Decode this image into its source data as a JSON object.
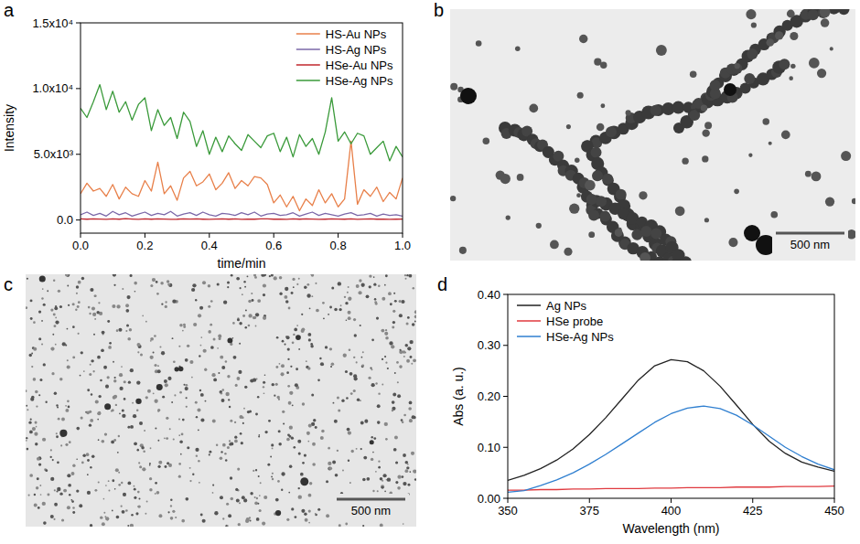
{
  "chart_data": [
    {
      "type": "line",
      "panel": "a",
      "x_label": "time/min",
      "y_label": "Intensity",
      "xlim": [
        0,
        1.0
      ],
      "xticks": [
        {
          "value": 0,
          "label": "0.0"
        },
        {
          "value": 0.2,
          "label": "0.2"
        },
        {
          "value": 0.4,
          "label": "0.4"
        },
        {
          "value": 0.6,
          "label": "0.6"
        },
        {
          "value": 0.8,
          "label": "0.8"
        },
        {
          "value": 1.0,
          "label": "1.0"
        }
      ],
      "ylim": [
        -1000,
        15000
      ],
      "yticks": [
        {
          "value": 0,
          "label": "0.0"
        },
        {
          "value": 5000,
          "label": "5.0x10³"
        },
        {
          "value": 10000,
          "label": "1.0x10⁴"
        },
        {
          "value": 15000,
          "label": "1.5x10⁴"
        }
      ],
      "grid": false,
      "legend": "upper right",
      "x": [
        0,
        0.02,
        0.04,
        0.06,
        0.08,
        0.1,
        0.12,
        0.14,
        0.16,
        0.18,
        0.2,
        0.22,
        0.24,
        0.26,
        0.28,
        0.3,
        0.32,
        0.34,
        0.36,
        0.38,
        0.4,
        0.42,
        0.44,
        0.46,
        0.48,
        0.5,
        0.52,
        0.54,
        0.56,
        0.58,
        0.6,
        0.62,
        0.64,
        0.66,
        0.68,
        0.7,
        0.72,
        0.74,
        0.76,
        0.78,
        0.8,
        0.82,
        0.84,
        0.86,
        0.88,
        0.9,
        0.92,
        0.94,
        0.96,
        0.98,
        1.0
      ],
      "series": [
        {
          "name": "HS-Au NPs",
          "color": "#e8804a",
          "values": [
            2000,
            2800,
            2200,
            2400,
            1800,
            2700,
            1600,
            2500,
            2000,
            1800,
            3000,
            2200,
            4400,
            2000,
            2600,
            1500,
            3200,
            3700,
            2600,
            2900,
            3500,
            2300,
            2800,
            3600,
            2400,
            3000,
            2600,
            3300,
            3200,
            2700,
            1300,
            1900,
            1000,
            1800,
            700,
            1600,
            1100,
            2300,
            1300,
            2000,
            1000,
            1600,
            6000,
            1200,
            2300,
            1800,
            2500,
            1400,
            2100,
            1600,
            3200
          ]
        },
        {
          "name": "HS-Ag NPs",
          "color": "#7b68a8",
          "values": [
            400,
            600,
            350,
            500,
            300,
            650,
            400,
            550,
            300,
            450,
            600,
            350,
            500,
            400,
            650,
            300,
            450,
            550,
            350,
            600,
            400,
            300,
            500,
            450,
            350,
            550,
            400,
            600,
            300,
            450,
            500,
            350,
            400,
            550,
            300,
            450,
            600,
            350,
            500,
            400,
            300,
            450,
            550,
            350,
            400,
            500,
            300,
            450,
            350,
            400,
            300
          ]
        },
        {
          "name": "HSe-Au NPs",
          "color": "#c0272d",
          "values": [
            80,
            60,
            90,
            70,
            50,
            80,
            60,
            100,
            70,
            50,
            90,
            60,
            80,
            70,
            50,
            60,
            90,
            70,
            80,
            60,
            50,
            70,
            90,
            60,
            80,
            50,
            70,
            60,
            90,
            80,
            60,
            70,
            50,
            80,
            60,
            90,
            70,
            50,
            60,
            80,
            70,
            60,
            90,
            50,
            70,
            80,
            60,
            70,
            50,
            60,
            70
          ]
        },
        {
          "name": "HSe-Ag NPs",
          "color": "#3a9a3a",
          "values": [
            8500,
            7800,
            9000,
            10300,
            8400,
            9800,
            8200,
            9000,
            7600,
            8800,
            9300,
            6800,
            8400,
            7200,
            7800,
            6200,
            8200,
            7500,
            5600,
            6800,
            5000,
            6300,
            5200,
            6400,
            5800,
            5300,
            6500,
            6000,
            5500,
            6400,
            6600,
            5200,
            6300,
            4800,
            6500,
            5600,
            6200,
            5000,
            6700,
            9300,
            6000,
            6700,
            5800,
            6600,
            6400,
            5000,
            5500,
            6000,
            4500,
            5600,
            4800
          ]
        }
      ]
    },
    {
      "type": "line",
      "panel": "d",
      "x_label": "Wavelength (nm)",
      "y_label": "Abs (a. u.)",
      "xlim": [
        350,
        450
      ],
      "xticks": [
        350,
        375,
        400,
        425,
        450
      ],
      "ylim": [
        0,
        0.4
      ],
      "yticks": [
        {
          "value": 0,
          "label": "0.00"
        },
        {
          "value": 0.1,
          "label": "0.10"
        },
        {
          "value": 0.2,
          "label": "0.20"
        },
        {
          "value": 0.3,
          "label": "0.30"
        },
        {
          "value": 0.4,
          "label": "0.40"
        }
      ],
      "grid": false,
      "legend": "upper left",
      "x": [
        350,
        355,
        360,
        365,
        370,
        375,
        380,
        385,
        390,
        395,
        400,
        405,
        410,
        415,
        420,
        425,
        430,
        435,
        440,
        445,
        450
      ],
      "series": [
        {
          "name": "Ag NPs",
          "color": "#222222",
          "values": [
            0.035,
            0.045,
            0.058,
            0.075,
            0.097,
            0.125,
            0.158,
            0.195,
            0.232,
            0.26,
            0.272,
            0.268,
            0.25,
            0.22,
            0.183,
            0.145,
            0.112,
            0.088,
            0.071,
            0.061,
            0.053
          ]
        },
        {
          "name": "HSe probe",
          "color": "#e0393e",
          "values": [
            0.016,
            0.016,
            0.017,
            0.017,
            0.018,
            0.018,
            0.019,
            0.019,
            0.019,
            0.02,
            0.02,
            0.021,
            0.021,
            0.021,
            0.022,
            0.022,
            0.022,
            0.023,
            0.023,
            0.023,
            0.024
          ]
        },
        {
          "name": "HSe-Ag NPs",
          "color": "#2f7fd0",
          "values": [
            0.012,
            0.015,
            0.025,
            0.036,
            0.05,
            0.067,
            0.086,
            0.107,
            0.128,
            0.149,
            0.166,
            0.177,
            0.181,
            0.176,
            0.163,
            0.144,
            0.122,
            0.1,
            0.082,
            0.067,
            0.056
          ]
        }
      ]
    }
  ],
  "images": [
    {
      "panel": "b",
      "scale_bar": "500 nm"
    },
    {
      "panel": "c",
      "scale_bar": "500 nm"
    }
  ]
}
